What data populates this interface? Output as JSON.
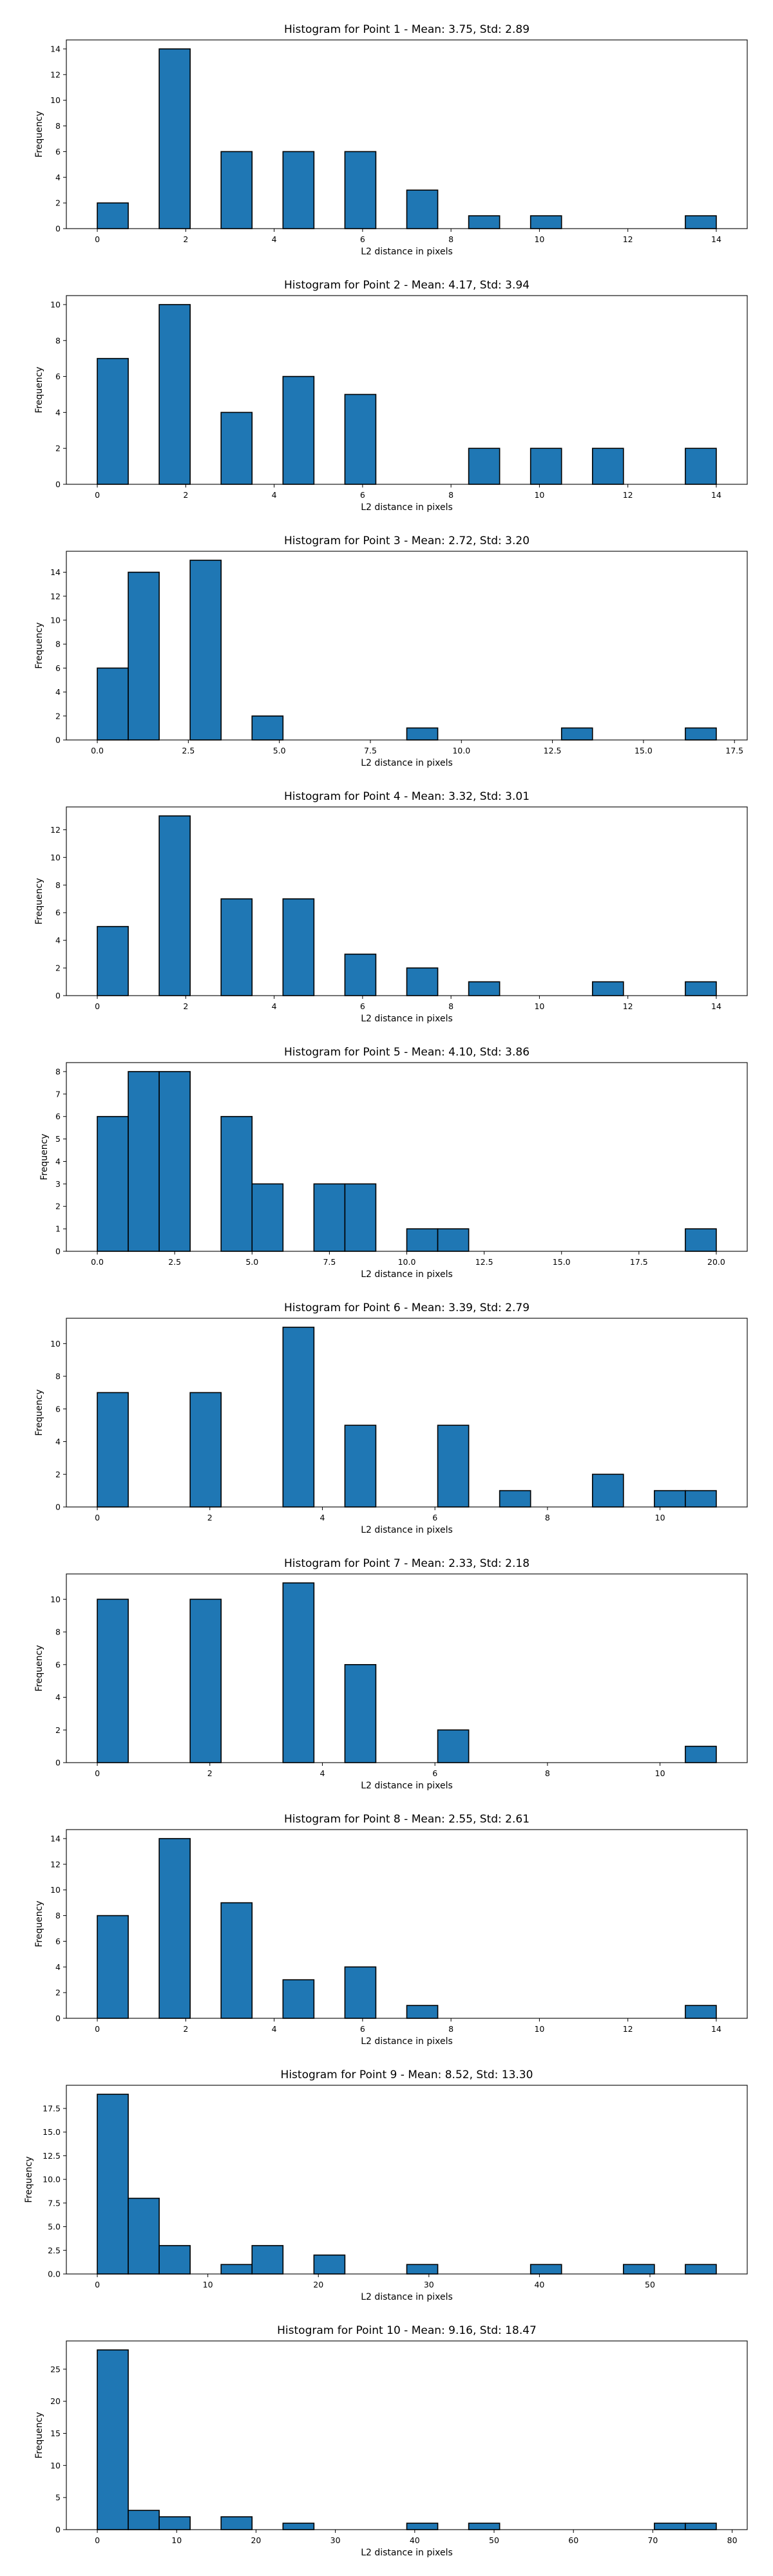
{
  "chart_data": [
    {
      "type": "histogram",
      "title": "Histogram for Point 1 - Mean: 3.75, Std: 2.89",
      "xlabel": "L2 distance in pixels",
      "ylabel": "Frequency",
      "bin_edges": [
        0,
        0.7,
        1.4,
        2.1,
        2.8,
        3.5,
        4.2,
        4.9,
        5.6,
        6.3,
        7.0,
        7.7,
        8.4,
        9.1,
        9.8,
        10.5,
        11.2,
        11.9,
        12.6,
        13.3,
        14.0
      ],
      "counts": [
        2,
        0,
        14,
        0,
        6,
        0,
        6,
        0,
        6,
        0,
        3,
        0,
        1,
        0,
        1,
        0,
        0,
        0,
        0,
        1
      ],
      "xlim": [
        -0.7,
        14.7
      ],
      "ylim": [
        0,
        14.7
      ],
      "xticks": [
        0,
        2,
        4,
        6,
        8,
        10,
        12,
        14
      ],
      "xtick_labels": [
        "0",
        "2",
        "4",
        "6",
        "8",
        "10",
        "12",
        "14"
      ],
      "yticks": [
        0,
        2,
        4,
        6,
        8,
        10,
        12,
        14
      ],
      "ytick_labels": [
        "0",
        "2",
        "4",
        "6",
        "8",
        "10",
        "12",
        "14"
      ],
      "bar_color": "#1f77b4",
      "edge_color": "#000000"
    },
    {
      "type": "histogram",
      "title": "Histogram for Point 2 - Mean: 4.17, Std: 3.94",
      "xlabel": "L2 distance in pixels",
      "ylabel": "Frequency",
      "bin_edges": [
        0,
        0.7,
        1.4,
        2.1,
        2.8,
        3.5,
        4.2,
        4.9,
        5.6,
        6.3,
        7.0,
        7.7,
        8.4,
        9.1,
        9.8,
        10.5,
        11.2,
        11.9,
        12.6,
        13.3,
        14.0
      ],
      "counts": [
        7,
        0,
        10,
        0,
        4,
        0,
        6,
        0,
        5,
        0,
        0,
        0,
        2,
        0,
        2,
        0,
        2,
        0,
        0,
        2
      ],
      "xlim": [
        -0.7,
        14.7
      ],
      "ylim": [
        0,
        10.5
      ],
      "xticks": [
        0,
        2,
        4,
        6,
        8,
        10,
        12,
        14
      ],
      "xtick_labels": [
        "0",
        "2",
        "4",
        "6",
        "8",
        "10",
        "12",
        "14"
      ],
      "yticks": [
        0,
        2,
        4,
        6,
        8,
        10
      ],
      "ytick_labels": [
        "0",
        "2",
        "4",
        "6",
        "8",
        "10"
      ],
      "bar_color": "#1f77b4",
      "edge_color": "#000000"
    },
    {
      "type": "histogram",
      "title": "Histogram for Point 3 - Mean: 2.72, Std: 3.20",
      "xlabel": "L2 distance in pixels",
      "ylabel": "Frequency",
      "bin_edges": [
        0,
        0.85,
        1.7,
        2.55,
        3.4,
        4.25,
        5.1,
        5.95,
        6.8,
        7.65,
        8.5,
        9.35,
        10.2,
        11.05,
        11.9,
        12.75,
        13.6,
        14.45,
        15.3,
        16.15,
        17.0
      ],
      "counts": [
        6,
        14,
        0,
        15,
        0,
        2,
        0,
        0,
        0,
        0,
        1,
        0,
        0,
        0,
        0,
        1,
        0,
        0,
        0,
        1
      ],
      "xlim": [
        -0.85,
        17.85
      ],
      "ylim": [
        0,
        15.75
      ],
      "xticks": [
        0,
        2.5,
        5,
        7.5,
        10,
        12.5,
        15,
        17.5
      ],
      "xtick_labels": [
        "0.0",
        "2.5",
        "5.0",
        "7.5",
        "10.0",
        "12.5",
        "15.0",
        "17.5"
      ],
      "yticks": [
        0,
        2,
        4,
        6,
        8,
        10,
        12,
        14
      ],
      "ytick_labels": [
        "0",
        "2",
        "4",
        "6",
        "8",
        "10",
        "12",
        "14"
      ],
      "bar_color": "#1f77b4",
      "edge_color": "#000000"
    },
    {
      "type": "histogram",
      "title": "Histogram for Point 4 - Mean: 3.32, Std: 3.01",
      "xlabel": "L2 distance in pixels",
      "ylabel": "Frequency",
      "bin_edges": [
        0,
        0.7,
        1.4,
        2.1,
        2.8,
        3.5,
        4.2,
        4.9,
        5.6,
        6.3,
        7.0,
        7.7,
        8.4,
        9.1,
        9.8,
        10.5,
        11.2,
        11.9,
        12.6,
        13.3,
        14.0
      ],
      "counts": [
        5,
        0,
        13,
        0,
        7,
        0,
        7,
        0,
        3,
        0,
        2,
        0,
        1,
        0,
        0,
        0,
        1,
        0,
        0,
        1
      ],
      "xlim": [
        -0.7,
        14.7
      ],
      "ylim": [
        0,
        13.65
      ],
      "xticks": [
        0,
        2,
        4,
        6,
        8,
        10,
        12,
        14
      ],
      "xtick_labels": [
        "0",
        "2",
        "4",
        "6",
        "8",
        "10",
        "12",
        "14"
      ],
      "yticks": [
        0,
        2,
        4,
        6,
        8,
        10,
        12
      ],
      "ytick_labels": [
        "0",
        "2",
        "4",
        "6",
        "8",
        "10",
        "12"
      ],
      "bar_color": "#1f77b4",
      "edge_color": "#000000"
    },
    {
      "type": "histogram",
      "title": "Histogram for Point 5 - Mean: 4.10, Std: 3.86",
      "xlabel": "L2 distance in pixels",
      "ylabel": "Frequency",
      "bin_edges": [
        0,
        1,
        2,
        3,
        4,
        5,
        6,
        7,
        8,
        9,
        10,
        11,
        12,
        13,
        14,
        15,
        16,
        17,
        18,
        19,
        20
      ],
      "counts": [
        6,
        8,
        8,
        0,
        6,
        3,
        0,
        3,
        3,
        0,
        1,
        1,
        0,
        0,
        0,
        0,
        0,
        0,
        0,
        1
      ],
      "xlim": [
        -1,
        21
      ],
      "ylim": [
        0,
        8.4
      ],
      "xticks": [
        0,
        2.5,
        5,
        7.5,
        10,
        12.5,
        15,
        17.5,
        20
      ],
      "xtick_labels": [
        "0.0",
        "2.5",
        "5.0",
        "7.5",
        "10.0",
        "12.5",
        "15.0",
        "17.5",
        "20.0"
      ],
      "yticks": [
        0,
        1,
        2,
        3,
        4,
        5,
        6,
        7,
        8
      ],
      "ytick_labels": [
        "0",
        "1",
        "2",
        "3",
        "4",
        "5",
        "6",
        "7",
        "8"
      ],
      "bar_color": "#1f77b4",
      "edge_color": "#000000"
    },
    {
      "type": "histogram",
      "title": "Histogram for Point 6 - Mean: 3.39, Std: 2.79",
      "xlabel": "L2 distance in pixels",
      "ylabel": "Frequency",
      "bin_edges": [
        0,
        0.55,
        1.1,
        1.65,
        2.2,
        2.75,
        3.3,
        3.85,
        4.4,
        4.95,
        5.5,
        6.05,
        6.6,
        7.15,
        7.7,
        8.25,
        8.8,
        9.35,
        9.9,
        10.45,
        11.0
      ],
      "counts": [
        7,
        0,
        0,
        7,
        0,
        0,
        11,
        0,
        5,
        0,
        0,
        5,
        0,
        1,
        0,
        0,
        2,
        0,
        1,
        1
      ],
      "xlim": [
        -0.55,
        11.55
      ],
      "ylim": [
        0,
        11.55
      ],
      "xticks": [
        0,
        2,
        4,
        6,
        8,
        10
      ],
      "xtick_labels": [
        "0",
        "2",
        "4",
        "6",
        "8",
        "10"
      ],
      "yticks": [
        0,
        2,
        4,
        6,
        8,
        10
      ],
      "ytick_labels": [
        "0",
        "2",
        "4",
        "6",
        "8",
        "10"
      ],
      "bar_color": "#1f77b4",
      "edge_color": "#000000"
    },
    {
      "type": "histogram",
      "title": "Histogram for Point 7 - Mean: 2.33, Std: 2.18",
      "xlabel": "L2 distance in pixels",
      "ylabel": "Frequency",
      "bin_edges": [
        0,
        0.55,
        1.1,
        1.65,
        2.2,
        2.75,
        3.3,
        3.85,
        4.4,
        4.95,
        5.5,
        6.05,
        6.6,
        7.15,
        7.7,
        8.25,
        8.8,
        9.35,
        9.9,
        10.45,
        11.0
      ],
      "counts": [
        10,
        0,
        0,
        10,
        0,
        0,
        11,
        0,
        6,
        0,
        0,
        2,
        0,
        0,
        0,
        0,
        0,
        0,
        0,
        1
      ],
      "xlim": [
        -0.55,
        11.55
      ],
      "ylim": [
        0,
        11.55
      ],
      "xticks": [
        0,
        2,
        4,
        6,
        8,
        10
      ],
      "xtick_labels": [
        "0",
        "2",
        "4",
        "6",
        "8",
        "10"
      ],
      "yticks": [
        0,
        2,
        4,
        6,
        8,
        10
      ],
      "ytick_labels": [
        "0",
        "2",
        "4",
        "6",
        "8",
        "10"
      ],
      "bar_color": "#1f77b4",
      "edge_color": "#000000"
    },
    {
      "type": "histogram",
      "title": "Histogram for Point 8 - Mean: 2.55, Std: 2.61",
      "xlabel": "L2 distance in pixels",
      "ylabel": "Frequency",
      "bin_edges": [
        0,
        0.7,
        1.4,
        2.1,
        2.8,
        3.5,
        4.2,
        4.9,
        5.6,
        6.3,
        7.0,
        7.7,
        8.4,
        9.1,
        9.8,
        10.5,
        11.2,
        11.9,
        12.6,
        13.3,
        14.0
      ],
      "counts": [
        8,
        0,
        14,
        0,
        9,
        0,
        3,
        0,
        4,
        0,
        1,
        0,
        0,
        0,
        0,
        0,
        0,
        0,
        0,
        1
      ],
      "xlim": [
        -0.7,
        14.7
      ],
      "ylim": [
        0,
        14.7
      ],
      "xticks": [
        0,
        2,
        4,
        6,
        8,
        10,
        12,
        14
      ],
      "xtick_labels": [
        "0",
        "2",
        "4",
        "6",
        "8",
        "10",
        "12",
        "14"
      ],
      "yticks": [
        0,
        2,
        4,
        6,
        8,
        10,
        12,
        14
      ],
      "ytick_labels": [
        "0",
        "2",
        "4",
        "6",
        "8",
        "10",
        "12",
        "14"
      ],
      "bar_color": "#1f77b4",
      "edge_color": "#000000"
    },
    {
      "type": "histogram",
      "title": "Histogram for Point 9 - Mean: 8.52, Std: 13.30",
      "xlabel": "L2 distance in pixels",
      "ylabel": "Frequency",
      "bin_edges": [
        0,
        2.8,
        5.6,
        8.4,
        11.2,
        14.0,
        16.8,
        19.6,
        22.4,
        25.2,
        28.0,
        30.8,
        33.6,
        36.4,
        39.2,
        42.0,
        44.8,
        47.6,
        50.4,
        53.2,
        56.0
      ],
      "counts": [
        19,
        8,
        3,
        0,
        1,
        3,
        0,
        2,
        0,
        0,
        1,
        0,
        0,
        0,
        1,
        0,
        0,
        1,
        0,
        1
      ],
      "xlim": [
        -2.8,
        58.8
      ],
      "ylim": [
        0,
        19.95
      ],
      "xticks": [
        0,
        10,
        20,
        30,
        40,
        50
      ],
      "xtick_labels": [
        "0",
        "10",
        "20",
        "30",
        "40",
        "50"
      ],
      "yticks": [
        0,
        2.5,
        5,
        7.5,
        10,
        12.5,
        15,
        17.5
      ],
      "ytick_labels": [
        "0.0",
        "2.5",
        "5.0",
        "7.5",
        "10.0",
        "12.5",
        "15.0",
        "17.5"
      ],
      "bar_color": "#1f77b4",
      "edge_color": "#000000"
    },
    {
      "type": "histogram",
      "title": "Histogram for Point 10 - Mean: 9.16, Std: 18.47",
      "xlabel": "L2 distance in pixels",
      "ylabel": "Frequency",
      "bin_edges": [
        0,
        3.9,
        7.8,
        11.7,
        15.6,
        19.5,
        23.4,
        27.3,
        31.2,
        35.1,
        39.0,
        42.9,
        46.8,
        50.7,
        54.6,
        58.5,
        62.4,
        66.3,
        70.2,
        74.1,
        78.0
      ],
      "counts": [
        28,
        3,
        2,
        0,
        2,
        0,
        1,
        0,
        0,
        0,
        1,
        0,
        1,
        0,
        0,
        0,
        0,
        0,
        1,
        1
      ],
      "xlim": [
        -3.9,
        81.9
      ],
      "ylim": [
        0,
        29.4
      ],
      "xticks": [
        0,
        10,
        20,
        30,
        40,
        50,
        60,
        70,
        80
      ],
      "xtick_labels": [
        "0",
        "10",
        "20",
        "30",
        "40",
        "50",
        "60",
        "70",
        "80"
      ],
      "yticks": [
        0,
        5,
        10,
        15,
        20,
        25
      ],
      "ytick_labels": [
        "0",
        "5",
        "10",
        "15",
        "20",
        "25"
      ],
      "bar_color": "#1f77b4",
      "edge_color": "#000000"
    }
  ]
}
